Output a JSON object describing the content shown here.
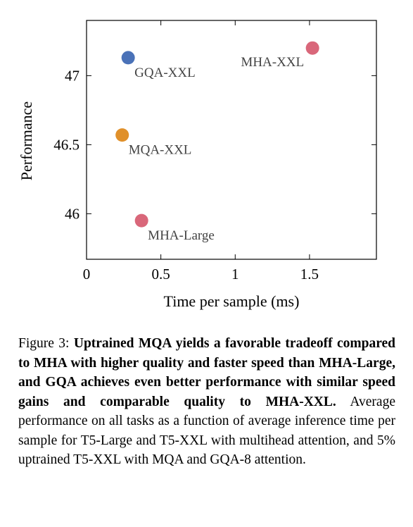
{
  "chart_data": {
    "type": "scatter",
    "xlabel": "Time per sample (ms)",
    "ylabel": "Performance",
    "xlim": [
      0,
      1.95
    ],
    "ylim": [
      45.67,
      47.4
    ],
    "x_ticks": [
      0,
      0.5,
      1,
      1.5
    ],
    "x_tick_labels": [
      "0",
      "0.5",
      "1",
      "1.5"
    ],
    "y_ticks": [
      46,
      46.5,
      47
    ],
    "y_tick_labels": [
      "46",
      "46.5",
      "47"
    ],
    "grid": false,
    "points": [
      {
        "label": "MHA-XXL",
        "x": 1.52,
        "y": 47.2,
        "color": "#d9677a",
        "label_side": "left"
      },
      {
        "label": "GQA-XXL",
        "x": 0.28,
        "y": 47.13,
        "color": "#4a72b8",
        "label_side": "below-right"
      },
      {
        "label": "MQA-XXL",
        "x": 0.24,
        "y": 46.57,
        "color": "#e0902a",
        "label_side": "below-right"
      },
      {
        "label": "MHA-Large",
        "x": 0.37,
        "y": 45.95,
        "color": "#d9677a",
        "label_side": "below-right"
      }
    ]
  },
  "caption": {
    "prefix": "Figure 3: ",
    "bold": "Uptrained MQA yields a favorable tradeoff compared to MHA with higher quality and faster speed than MHA-Large, and GQA achieves even better performance with similar speed gains and comparable quality to MHA-XXL.",
    "rest": " Average performance on all tasks as a function of average inference time per sample for T5-Large and T5-XXL with multihead attention, and 5% uptrained T5-XXL with MQA and GQA-8 attention."
  }
}
